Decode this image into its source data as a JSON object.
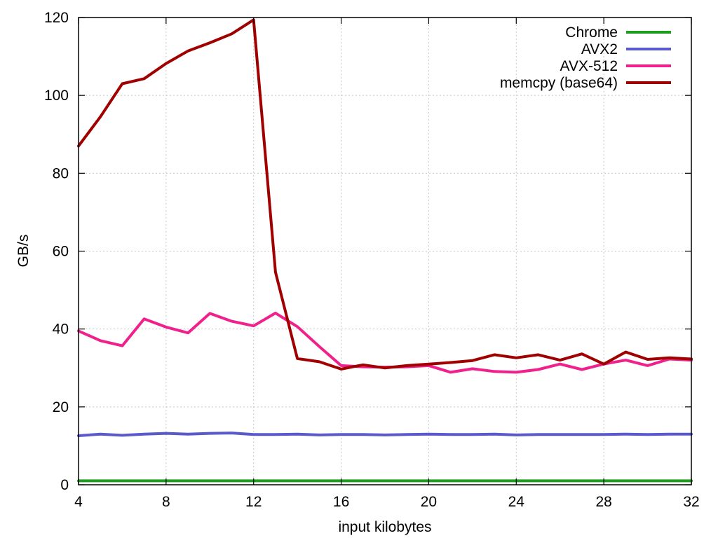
{
  "chart_data": {
    "type": "line",
    "title": "",
    "xlabel": "input kilobytes",
    "ylabel": "GB/s",
    "xlim": [
      4,
      32
    ],
    "ylim": [
      0,
      120
    ],
    "x_ticks": [
      4,
      8,
      12,
      16,
      20,
      24,
      28,
      32
    ],
    "y_ticks": [
      0,
      20,
      40,
      60,
      80,
      100,
      120
    ],
    "grid": true,
    "legend_position": "top-right",
    "x": [
      4,
      5,
      6,
      7,
      8,
      9,
      10,
      11,
      12,
      13,
      14,
      15,
      16,
      17,
      18,
      19,
      20,
      21,
      22,
      23,
      24,
      25,
      26,
      27,
      28,
      29,
      30,
      31,
      32
    ],
    "series": [
      {
        "name": "Chrome",
        "color": "#1e9e1e",
        "values": [
          1.0,
          1.0,
          1.0,
          1.0,
          1.0,
          1.0,
          1.0,
          1.0,
          1.0,
          1.0,
          1.0,
          1.0,
          1.0,
          1.0,
          1.0,
          1.0,
          1.0,
          1.0,
          1.0,
          1.0,
          1.0,
          1.0,
          1.0,
          1.0,
          1.0,
          1.0,
          1.0,
          1.0,
          1.0
        ]
      },
      {
        "name": "AVX2",
        "color": "#5a5acd",
        "values": [
          12.6,
          13.0,
          12.7,
          13.0,
          13.2,
          13.0,
          13.2,
          13.3,
          12.9,
          12.9,
          13.0,
          12.8,
          12.9,
          12.9,
          12.8,
          12.9,
          13.0,
          12.9,
          12.9,
          13.0,
          12.8,
          12.9,
          12.9,
          12.9,
          12.9,
          13.0,
          12.9,
          13.0,
          13.0
        ]
      },
      {
        "name": "AVX-512",
        "color": "#f0208c",
        "values": [
          39.5,
          37.0,
          35.7,
          42.6,
          40.5,
          39.0,
          44.0,
          42.0,
          40.8,
          44.1,
          40.6,
          35.5,
          30.6,
          30.3,
          30.2,
          30.3,
          30.6,
          28.9,
          29.8,
          29.1,
          28.9,
          29.6,
          31.0,
          29.6,
          31.0,
          32.0,
          30.6,
          32.3,
          32.0
        ]
      },
      {
        "name": "memcpy (base64)",
        "color": "#a00000",
        "values": [
          87.0,
          94.5,
          103.0,
          104.3,
          108.2,
          111.4,
          113.5,
          115.8,
          119.4,
          54.6,
          32.4,
          31.6,
          29.7,
          30.8,
          30.0,
          30.6,
          31.0,
          31.4,
          31.9,
          33.4,
          32.6,
          33.4,
          32.0,
          33.6,
          31.0,
          34.1,
          32.2,
          32.6,
          32.3
        ]
      }
    ]
  }
}
